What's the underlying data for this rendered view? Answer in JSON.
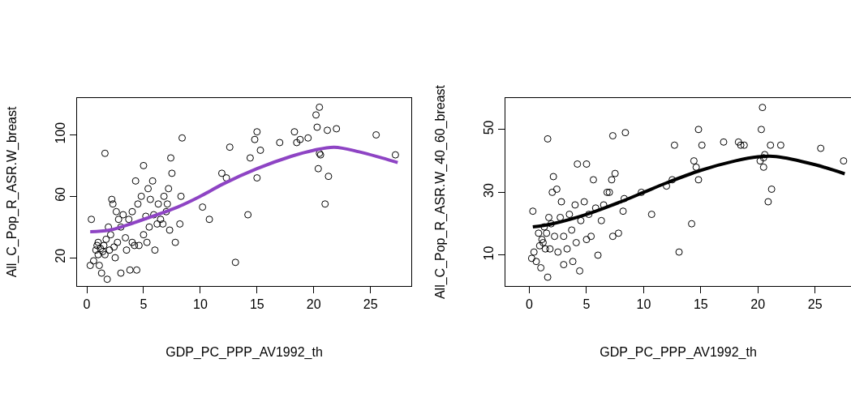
{
  "chart_data": [
    {
      "type": "scatter",
      "xlabel": "GDP_PC_PPP_AV1992_th",
      "ylabel": "All_C_Pop_R_ASR.W_breast",
      "xlim": [
        -0.86,
        28.6
      ],
      "ylim": [
        1.6,
        124
      ],
      "xticks": [
        0,
        5,
        10,
        15,
        20,
        25
      ],
      "yticks": [
        20,
        60,
        100
      ],
      "marker": "circle",
      "series": [
        {
          "color": "#000000",
          "x": [
            0.3,
            0.4,
            0.6,
            0.8,
            0.9,
            1.0,
            1.0,
            1.1,
            1.2,
            1.3,
            1.4,
            1.5,
            1.6,
            1.7,
            1.8,
            1.6,
            1.9,
            2.0,
            2.1,
            2.2,
            2.3,
            2.4,
            2.5,
            2.6,
            2.8,
            3.0,
            3.0,
            3.2,
            3.5,
            3.7,
            3.8,
            4.0,
            4.2,
            4.3,
            4.4,
            4.5,
            4.8,
            5.0,
            5.0,
            5.2,
            5.3,
            5.4,
            5.5,
            5.6,
            5.8,
            6.0,
            6.2,
            6.5,
            6.8,
            7.0,
            7.2,
            7.3,
            7.4,
            7.5,
            7.8,
            8.2,
            8.3,
            8.4,
            10.2,
            10.8,
            11.9,
            12.3,
            12.6,
            13.1,
            14.2,
            14.4,
            14.8,
            15.0,
            15.0,
            15.3,
            17.0,
            18.3,
            18.5,
            18.8,
            19.5,
            20.2,
            20.3,
            20.5,
            20.4,
            20.5,
            20.6,
            21.0,
            21.2,
            21.3,
            22.0,
            25.5,
            27.2,
            3.4,
            4.0,
            4.6,
            2.7,
            5.9,
            6.3,
            7.1,
            6.7
          ],
          "values": [
            15,
            45,
            18,
            25,
            28,
            22,
            30,
            15,
            26,
            10,
            24,
            28,
            22,
            32,
            6,
            88,
            40,
            25,
            35,
            58,
            55,
            27,
            20,
            50,
            45,
            40,
            10,
            48,
            25,
            45,
            12,
            50,
            28,
            70,
            12,
            55,
            60,
            80,
            35,
            47,
            30,
            65,
            40,
            58,
            70,
            25,
            42,
            45,
            60,
            50,
            65,
            38,
            85,
            75,
            30,
            42,
            60,
            98,
            53,
            45,
            75,
            72,
            92,
            17,
            48,
            85,
            97,
            102,
            72,
            90,
            95,
            102,
            95,
            97,
            98,
            113,
            105,
            118,
            78,
            88,
            87,
            55,
            103,
            73,
            104,
            100,
            87,
            33,
            30,
            28,
            30,
            48,
            55,
            55,
            42
          ]
        },
        {
          "type": "line",
          "color": "#8e44c4",
          "marker": "none",
          "x": [
            0.3,
            2,
            5,
            8,
            10,
            12,
            15,
            18,
            20,
            21.8,
            24,
            26,
            27.4
          ],
          "values": [
            37,
            38,
            45,
            53,
            60,
            68,
            78,
            86,
            90,
            92,
            89,
            85,
            82
          ]
        }
      ]
    },
    {
      "type": "scatter",
      "xlabel": "GDP_PC_PPP_AV1992_th",
      "ylabel": "All_C_Pop_R_ASR.W_40_60_breast",
      "xlim": [
        -2.1,
        28.15
      ],
      "ylim": [
        0.2,
        60
      ],
      "xticks": [
        0,
        5,
        10,
        15,
        20,
        25
      ],
      "yticks": [
        10,
        30,
        50
      ],
      "marker": "circle",
      "series": [
        {
          "color": "#000000",
          "x": [
            0.2,
            0.3,
            0.4,
            0.6,
            0.8,
            0.9,
            1.0,
            1.1,
            1.2,
            1.3,
            1.4,
            1.5,
            1.6,
            1.6,
            1.7,
            1.8,
            1.9,
            2.0,
            2.1,
            2.2,
            2.4,
            2.5,
            2.7,
            2.8,
            3.0,
            3.0,
            3.3,
            3.5,
            3.7,
            3.8,
            4.0,
            4.1,
            4.2,
            4.4,
            4.5,
            4.8,
            5.0,
            5.0,
            5.2,
            5.4,
            5.6,
            5.8,
            6.0,
            6.3,
            6.5,
            6.8,
            7.0,
            7.2,
            7.3,
            7.3,
            7.5,
            7.8,
            8.2,
            8.3,
            8.4,
            9.8,
            10.7,
            12.0,
            12.5,
            12.7,
            13.1,
            14.2,
            14.4,
            14.6,
            14.8,
            14.8,
            15.1,
            17.0,
            18.3,
            18.5,
            18.8,
            20.3,
            20.2,
            20.4,
            20.5,
            20.5,
            20.6,
            20.9,
            21.1,
            21.2,
            22.0,
            25.5,
            27.5
          ],
          "values": [
            9,
            24,
            11,
            8,
            17,
            13,
            6,
            15,
            14,
            19,
            12,
            17,
            3,
            47,
            22,
            12,
            20,
            30,
            35,
            16,
            31,
            11,
            22,
            27,
            16,
            7,
            12,
            23,
            18,
            8,
            26,
            14,
            39,
            5,
            21,
            27,
            39,
            15,
            23,
            16,
            34,
            25,
            10,
            21,
            26,
            30,
            30,
            34,
            16,
            48,
            36,
            17,
            24,
            28,
            49,
            30,
            23,
            32,
            34,
            45,
            11,
            20,
            40,
            38,
            50,
            34,
            45,
            46,
            46,
            45,
            45,
            50,
            40,
            57,
            38,
            41,
            42,
            27,
            45,
            31,
            45,
            44,
            40
          ]
        },
        {
          "type": "line",
          "color": "#000000",
          "marker": "none",
          "x": [
            0.3,
            2,
            5,
            8,
            10,
            12,
            15,
            18,
            20,
            21.6,
            25,
            27.6
          ],
          "values": [
            19,
            20,
            23,
            27,
            30,
            33,
            37,
            40,
            41.3,
            41.4,
            38.8,
            35.9
          ]
        }
      ]
    }
  ]
}
